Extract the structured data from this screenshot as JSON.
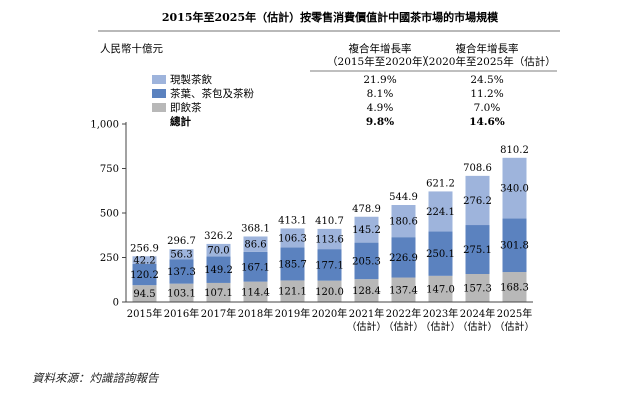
{
  "chart_data": {
    "type": "bar",
    "stacked": true,
    "title": "2015年至2025年（估計）按零售消費價值計中國茶市場的市場規模",
    "ylabel": "人民幣十億元",
    "ylim": [
      0,
      1000
    ],
    "yticks": [
      "0",
      "250",
      "500",
      "750",
      "1,000"
    ],
    "grid": false,
    "categories": [
      "2015年",
      "2016年",
      "2017年",
      "2018年",
      "2019年",
      "2020年",
      "2021年\n（估計）",
      "2022年\n（估計）",
      "2023年\n（估計）",
      "2024年\n（估計）",
      "2025年\n（估計）"
    ],
    "series": [
      {
        "name": "即飲茶",
        "color": "#b8b8b8",
        "values": [
          94.5,
          103.1,
          107.1,
          114.4,
          121.1,
          120.0,
          128.4,
          137.4,
          147.0,
          157.3,
          168.3
        ],
        "labels": [
          "94.5",
          "103.1",
          "107.1",
          "114.4",
          "121.1",
          "120.0",
          "128.4",
          "137.4",
          "147.0",
          "157.3",
          "168.3"
        ]
      },
      {
        "name": "茶葉、茶包及茶粉",
        "color": "#5b82bf",
        "values": [
          120.2,
          137.3,
          149.2,
          167.1,
          185.7,
          177.1,
          205.3,
          226.9,
          250.1,
          275.1,
          301.8
        ],
        "labels": [
          "120.2",
          "137.3",
          "149.2",
          "167.1",
          "185.7",
          "177.1",
          "205.3",
          "226.9",
          "250.1",
          "275.1",
          "301.8"
        ]
      },
      {
        "name": "現製茶飲",
        "color": "#9eb4dc",
        "values": [
          42.2,
          56.3,
          70.0,
          86.6,
          106.3,
          113.6,
          145.2,
          180.6,
          224.1,
          276.2,
          340.0
        ],
        "labels": [
          "42.2",
          "56.3",
          "70.0",
          "86.6",
          "106.3",
          "113.6",
          "145.2",
          "180.6",
          "224.1",
          "276.2",
          "340.0"
        ]
      }
    ],
    "totals": [
      256.9,
      296.7,
      326.2,
      368.1,
      413.1,
      410.7,
      478.9,
      544.9,
      621.2,
      708.6,
      810.2
    ],
    "total_labels": [
      "256.9",
      "296.7",
      "326.2",
      "368.1",
      "413.1",
      "410.7",
      "478.9",
      "544.9",
      "621.2",
      "708.6",
      "810.2"
    ],
    "cagr_table": {
      "headers": [
        [
          "複合年增長率",
          "（2015年至2020年）"
        ],
        [
          "複合年增長率",
          "（2020年至2025年（估計）"
        ]
      ],
      "rows": [
        {
          "label": "現製茶飲",
          "color": "#9eb4dc",
          "values": [
            "21.9%",
            "24.5%"
          ]
        },
        {
          "label": "茶葉、茶包及茶粉",
          "color": "#5b82bf",
          "values": [
            "8.1%",
            "11.2%"
          ]
        },
        {
          "label": "即飲茶",
          "color": "#b8b8b8",
          "values": [
            "4.9%",
            "7.0%"
          ]
        },
        {
          "label": "總計",
          "color": "",
          "values": [
            "9.8%",
            "14.6%"
          ],
          "bold": true
        }
      ]
    }
  },
  "source": "資料來源：灼識諮詢報告"
}
